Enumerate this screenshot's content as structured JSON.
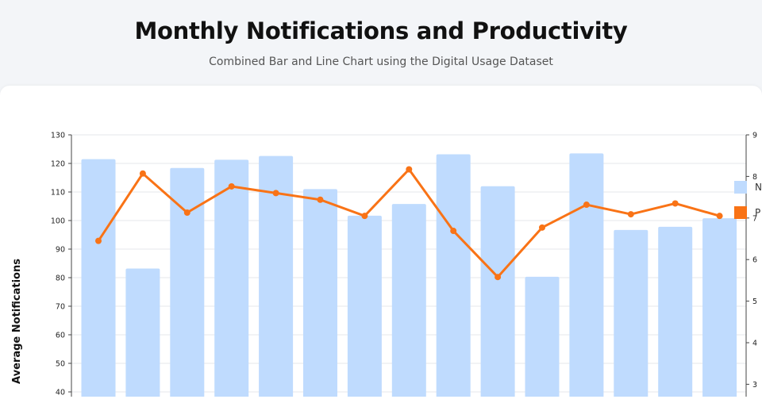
{
  "header": {
    "title": "Monthly Notifications and Productivity",
    "subtitle": "Combined Bar and Line Chart using the Digital Usage Dataset"
  },
  "chart_data": {
    "type": "bar",
    "ylabel": "Average Notifications",
    "ylim": [
      40,
      130
    ],
    "y_ticks": [
      40,
      50,
      60,
      70,
      80,
      90,
      100,
      110,
      120,
      130
    ],
    "y2lim": [
      3,
      9
    ],
    "y2_ticks": [
      3,
      4,
      5,
      6,
      7,
      8,
      9
    ],
    "grid": true,
    "legend_position": "right",
    "series": [
      {
        "name": "N",
        "type": "bar",
        "color": "#bfdbfe",
        "axis": "left",
        "values": [
          121.5,
          83.2,
          118.4,
          121.3,
          122.6,
          111.0,
          101.7,
          105.8,
          123.2,
          112.0,
          80.3,
          123.5,
          96.7,
          97.8,
          100.8
        ]
      },
      {
        "name": "P",
        "type": "line",
        "color": "#f97316",
        "axis": "right",
        "values": [
          6.45,
          8.07,
          7.13,
          7.76,
          7.6,
          7.44,
          7.05,
          8.17,
          6.69,
          5.58,
          6.77,
          7.32,
          7.09,
          7.35,
          7.05
        ]
      }
    ]
  }
}
